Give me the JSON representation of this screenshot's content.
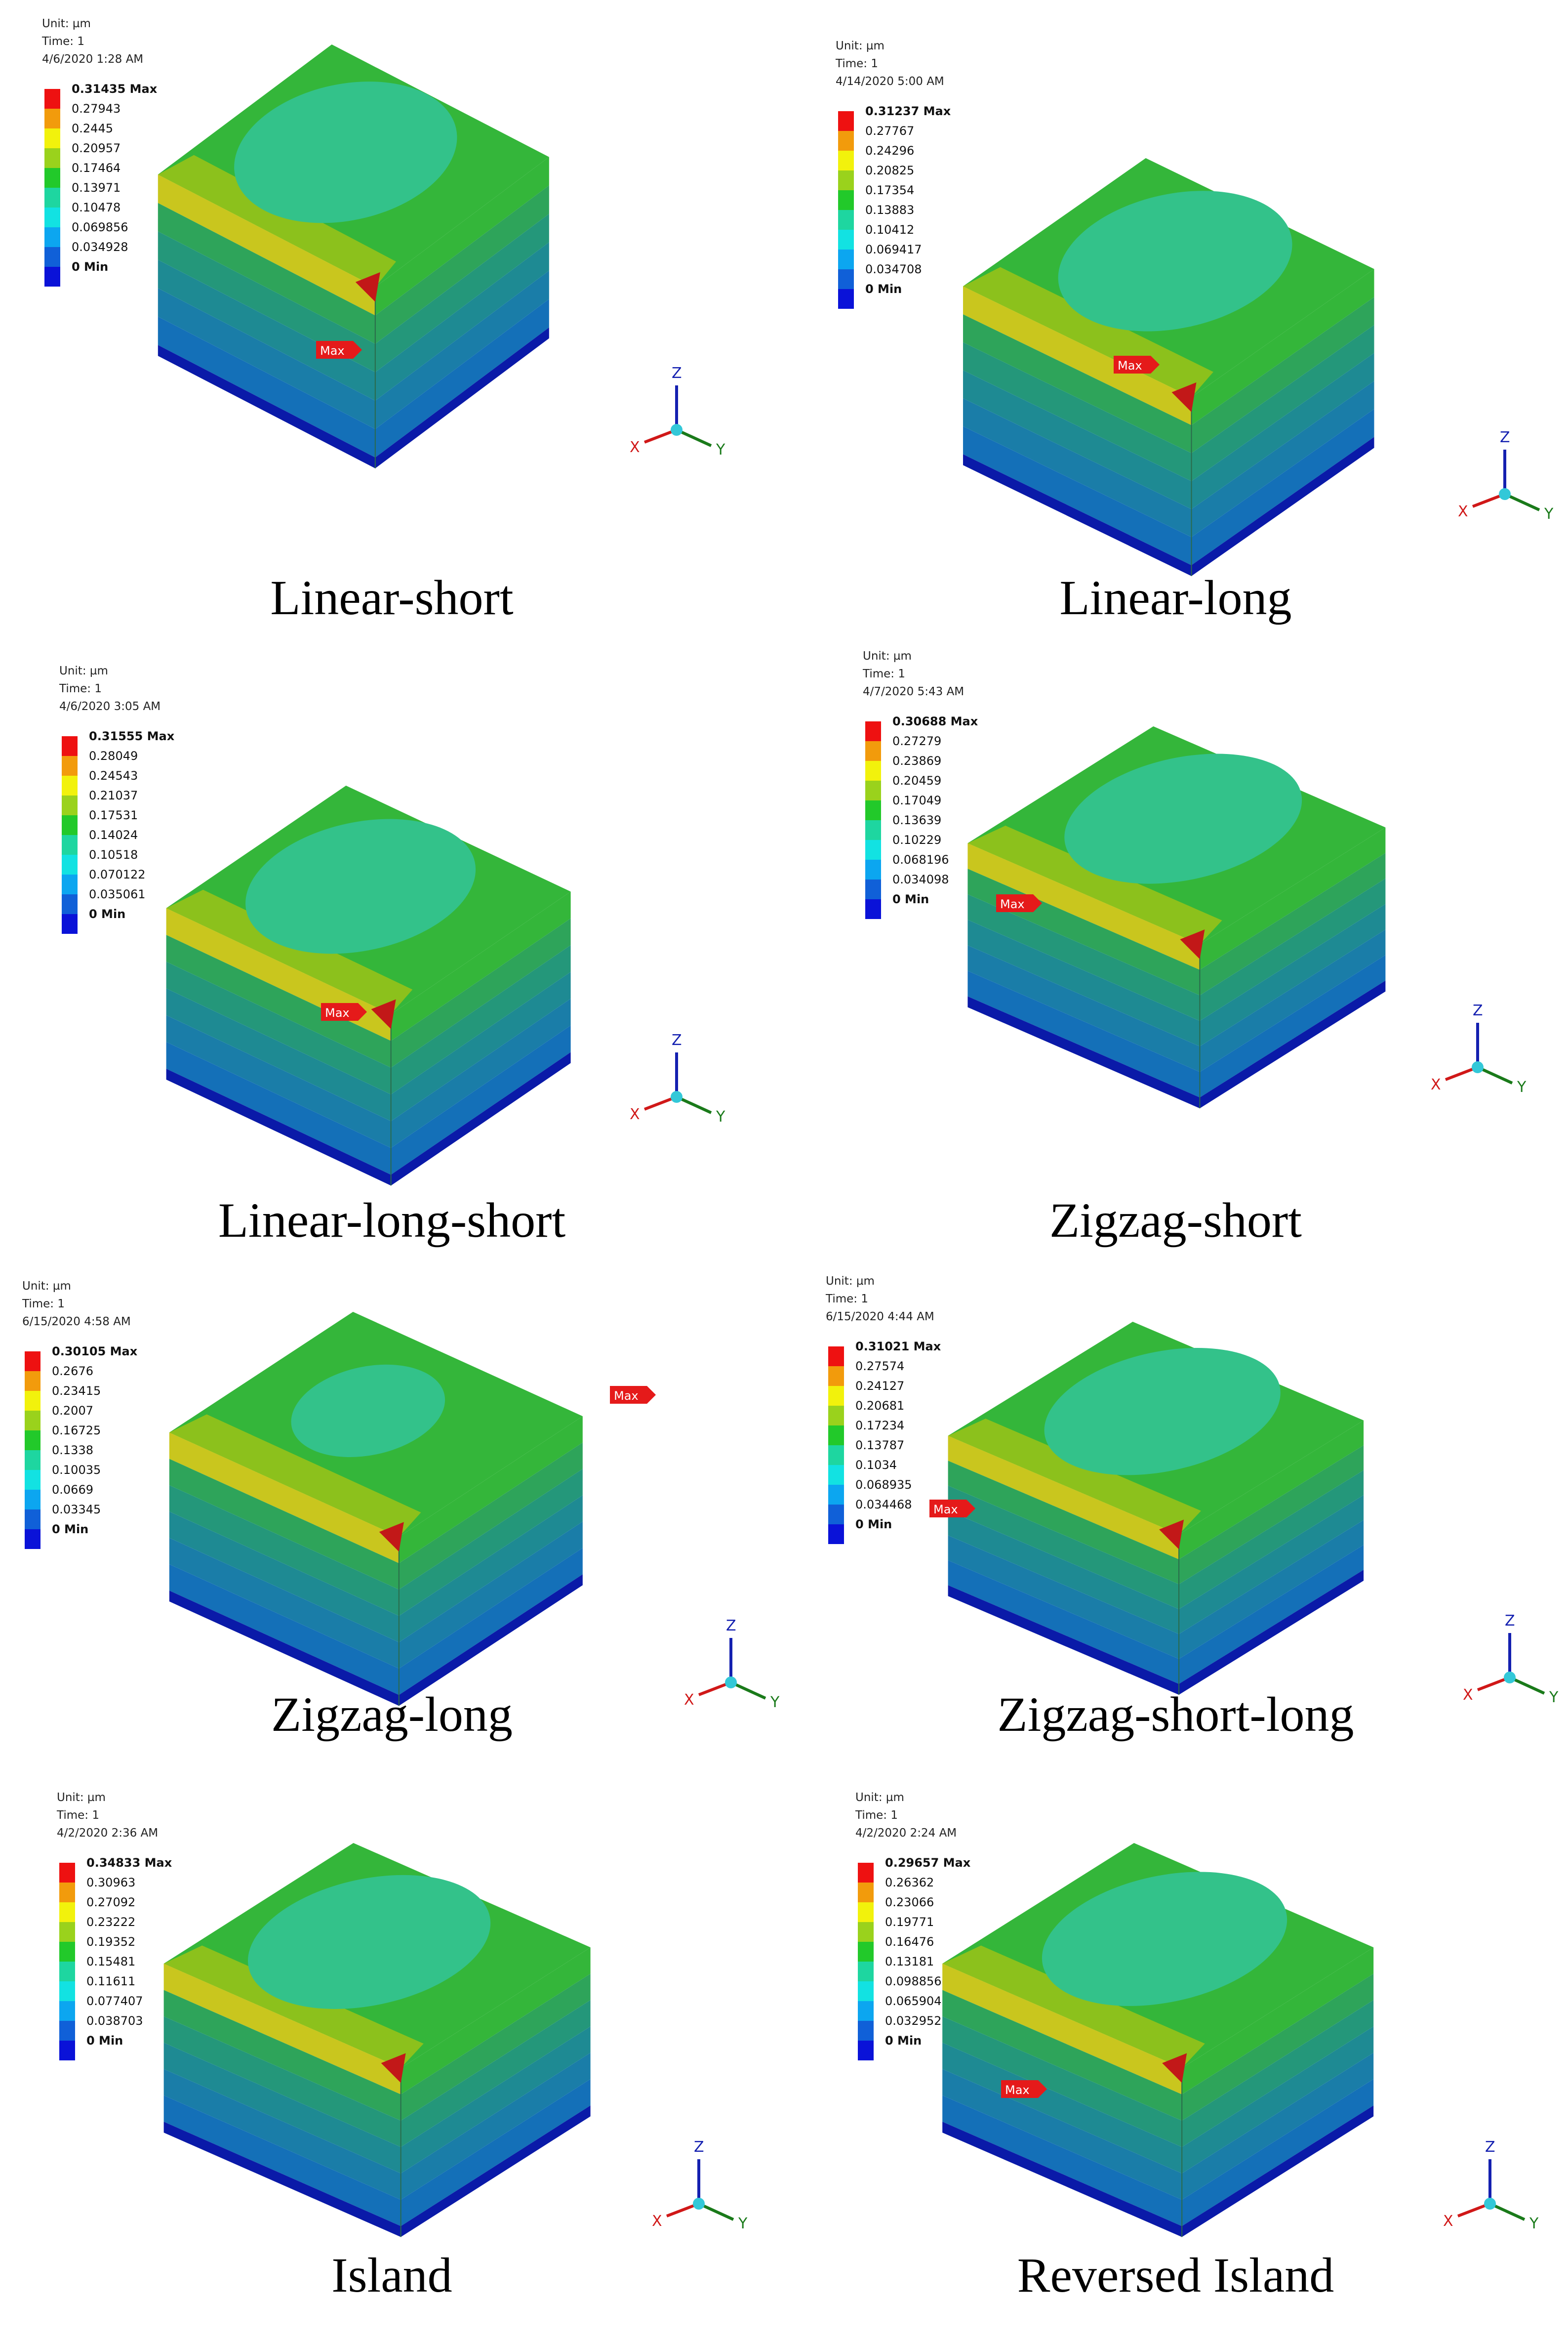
{
  "panels": [
    {
      "caption": "Linear-short",
      "unit": "Unit: µm",
      "time": "Time: 1",
      "date": "4/6/2020 1:28 AM",
      "legend": [
        "0.31435 Max",
        "0.27943",
        "0.2445",
        "0.20957",
        "0.17464",
        "0.13971",
        "0.10478",
        "0.069856",
        "0.034928",
        "0 Min"
      ],
      "max_label": "Max"
    },
    {
      "caption": "Linear-long",
      "unit": "Unit: µm",
      "time": "Time: 1",
      "date": "4/14/2020 5:00 AM",
      "legend": [
        "0.31237 Max",
        "0.27767",
        "0.24296",
        "0.20825",
        "0.17354",
        "0.13883",
        "0.10412",
        "0.069417",
        "0.034708",
        "0 Min"
      ],
      "max_label": "Max"
    },
    {
      "caption": "Linear-long-short",
      "unit": "Unit: µm",
      "time": "Time: 1",
      "date": "4/6/2020 3:05 AM",
      "legend": [
        "0.31555 Max",
        "0.28049",
        "0.24543",
        "0.21037",
        "0.17531",
        "0.14024",
        "0.10518",
        "0.070122",
        "0.035061",
        "0 Min"
      ],
      "max_label": "Max"
    },
    {
      "caption": "Zigzag-short",
      "unit": "Unit: µm",
      "time": "Time: 1",
      "date": "4/7/2020 5:43 AM",
      "legend": [
        "0.30688 Max",
        "0.27279",
        "0.23869",
        "0.20459",
        "0.17049",
        "0.13639",
        "0.10229",
        "0.068196",
        "0.034098",
        "0 Min"
      ],
      "max_label": "Max"
    },
    {
      "caption": "Zigzag-long",
      "unit": "Unit: µm",
      "time": "Time: 1",
      "date": "6/15/2020 4:58 AM",
      "legend": [
        "0.30105 Max",
        "0.2676",
        "0.23415",
        "0.2007",
        "0.16725",
        "0.1338",
        "0.10035",
        "0.0669",
        "0.03345",
        "0 Min"
      ],
      "max_label": "Max"
    },
    {
      "caption": "Zigzag-short-long",
      "unit": "Unit: µm",
      "time": "Time: 1",
      "date": "6/15/2020 4:44 AM",
      "legend": [
        "0.31021 Max",
        "0.27574",
        "0.24127",
        "0.20681",
        "0.17234",
        "0.13787",
        "0.1034",
        "0.068935",
        "0.034468",
        "0 Min"
      ],
      "max_label": "Max"
    },
    {
      "caption": "Island",
      "unit": "Unit: µm",
      "time": "Time: 1",
      "date": "4/2/2020 2:36 AM",
      "legend": [
        "0.34833 Max",
        "0.30963",
        "0.27092",
        "0.23222",
        "0.19352",
        "0.15481",
        "0.11611",
        "0.077407",
        "0.038703",
        "0 Min"
      ],
      "max_label": ""
    },
    {
      "caption": "Reversed Island",
      "unit": "Unit: µm",
      "time": "Time: 1",
      "date": "4/2/2020 2:24 AM",
      "legend": [
        "0.29657 Max",
        "0.26362",
        "0.23066",
        "0.19771",
        "0.16476",
        "0.13181",
        "0.098856",
        "0.065904",
        "0.032952",
        "0 Min"
      ],
      "max_label": "Max"
    }
  ],
  "axis_labels": {
    "z": "Z",
    "x": "X",
    "y": "Y"
  },
  "legend_colors": [
    "#ee1111",
    "#f29b0c",
    "#f2f20c",
    "#9ad21c",
    "#22c92a",
    "#1ed6a0",
    "#12e2e2",
    "#0ca6f0",
    "#1060d8",
    "#0a12d8"
  ],
  "contour_colors": {
    "top_green": "#34b63a",
    "top_center": "#33c28a",
    "yellow": "#c9c61e",
    "yellow_green": "#8cc11c",
    "layers": [
      "#2ea45a",
      "#24977a",
      "#1e8a93",
      "#1a7da8",
      "#1470b8",
      "#0a1aa8"
    ]
  }
}
